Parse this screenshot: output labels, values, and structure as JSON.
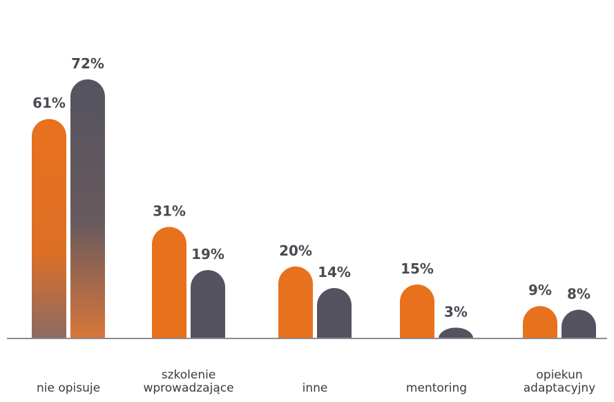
{
  "chart_data": {
    "type": "bar",
    "categories": [
      [
        "nie opisuje"
      ],
      [
        "szkolenie",
        "wprowadzające"
      ],
      [
        "inne"
      ],
      [
        "mentoring"
      ],
      [
        "opiekun",
        "adaptacyjny"
      ]
    ],
    "series": [
      {
        "values": [
          61,
          31,
          20,
          15,
          9
        ],
        "labels": [
          "61%",
          "31%",
          "20%",
          "15%",
          "9%"
        ],
        "color": "#e8711e"
      },
      {
        "values": [
          72,
          19,
          14,
          3,
          8
        ],
        "labels": [
          "72%",
          "19%",
          "14%",
          "3%",
          "8%"
        ],
        "color": "#54535f"
      }
    ],
    "ylim": [
      0,
      80
    ],
    "grid": false,
    "legend": "none",
    "baseline_color": "#8a8a92"
  }
}
